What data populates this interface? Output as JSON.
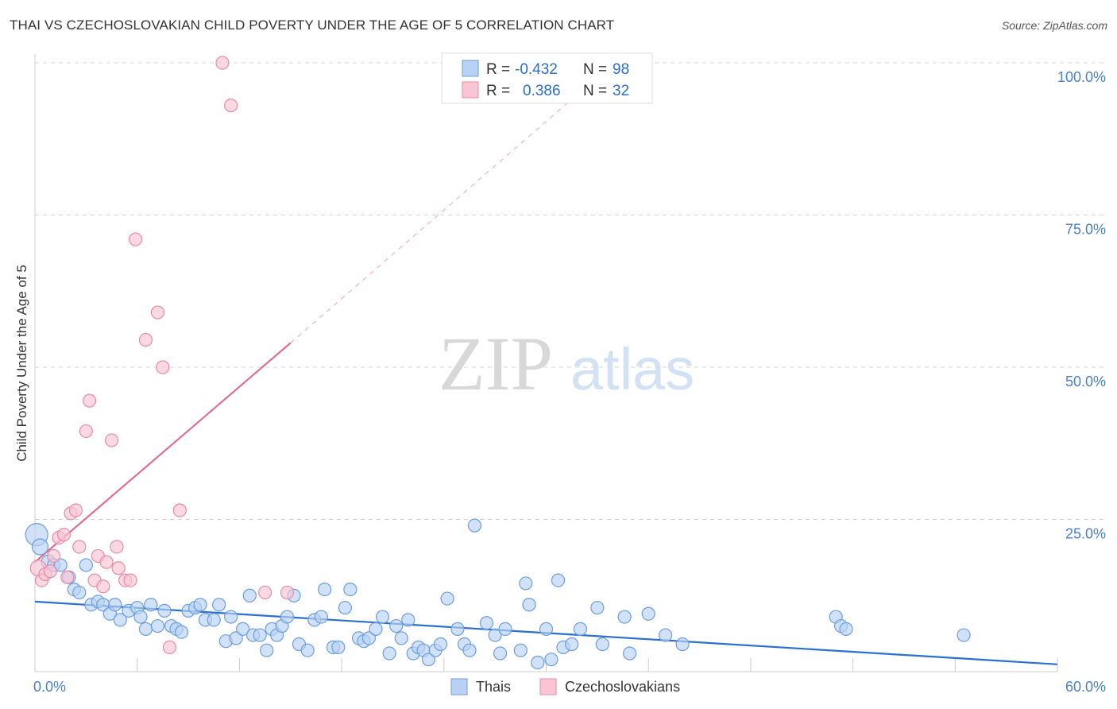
{
  "title": "THAI VS CZECHOSLOVAKIAN CHILD POVERTY UNDER THE AGE OF 5 CORRELATION CHART",
  "source": "Source: ZipAtlas.com",
  "colors": {
    "thai_fill": "#b8d2f4",
    "thai_stroke": "#6b9ee0",
    "thai_line": "#2a6fd1",
    "czech_fill": "#f8c5d4",
    "czech_stroke": "#ea8aa8",
    "czech_line": "#e06f96",
    "grid": "#d6d6d6",
    "axis_text": "#4a7fd0"
  },
  "chart_data": {
    "type": "scatter",
    "title": "THAI VS CZECHOSLOVAKIAN CHILD POVERTY UNDER THE AGE OF 5 CORRELATION CHART",
    "xlabel": "",
    "ylabel": "Child Poverty Under the Age of 5",
    "xlim": [
      0,
      60
    ],
    "ylim": [
      0,
      100
    ],
    "x_tick_labels": [
      "0.0%",
      "60.0%"
    ],
    "y_ticks": [
      25,
      50,
      75,
      100
    ],
    "y_tick_labels": [
      "25.0%",
      "50.0%",
      "75.0%",
      "100.0%"
    ],
    "legend": [
      {
        "name": "Thais",
        "r_label": "R = ",
        "r_value": "-0.432",
        "n_label": "N = ",
        "n_value": "98"
      },
      {
        "name": "Czechoslovakians",
        "r_label": "R = ",
        "r_value": "0.386",
        "n_label": "N = ",
        "n_value": "32"
      }
    ],
    "watermark": {
      "zip": "ZIP",
      "atlas": "atlas"
    },
    "series": [
      {
        "name": "Thais",
        "trend": {
          "x0": 0,
          "y0": 11.5,
          "x1": 60,
          "y1": 1.2
        },
        "points": [
          [
            0.1,
            22.5,
            14
          ],
          [
            0.3,
            20.5,
            10
          ],
          [
            0.8,
            18.0,
            9
          ],
          [
            1.1,
            17.5,
            8
          ],
          [
            1.5,
            17.5,
            8
          ],
          [
            2.0,
            15.5,
            8
          ],
          [
            2.3,
            13.5,
            8
          ],
          [
            2.6,
            13.0,
            8
          ],
          [
            3.0,
            17.5,
            8
          ],
          [
            3.3,
            11.0,
            8
          ],
          [
            3.7,
            11.5,
            8
          ],
          [
            4.0,
            11.0,
            8
          ],
          [
            4.4,
            9.5,
            8
          ],
          [
            4.7,
            11.0,
            8
          ],
          [
            5.0,
            8.5,
            8
          ],
          [
            5.5,
            10.0,
            8
          ],
          [
            6.0,
            10.5,
            8
          ],
          [
            6.2,
            9.0,
            8
          ],
          [
            6.5,
            7.0,
            8
          ],
          [
            6.8,
            11.0,
            8
          ],
          [
            7.2,
            7.5,
            8
          ],
          [
            7.6,
            10.0,
            8
          ],
          [
            8.0,
            7.5,
            8
          ],
          [
            8.3,
            7.0,
            8
          ],
          [
            8.6,
            6.5,
            8
          ],
          [
            9.0,
            10.0,
            8
          ],
          [
            9.4,
            10.5,
            8
          ],
          [
            9.7,
            11.0,
            8
          ],
          [
            10.0,
            8.5,
            8
          ],
          [
            10.5,
            8.5,
            8
          ],
          [
            10.8,
            11.0,
            8
          ],
          [
            11.2,
            5.0,
            8
          ],
          [
            11.5,
            9.0,
            8
          ],
          [
            11.8,
            5.5,
            8
          ],
          [
            12.2,
            7.0,
            8
          ],
          [
            12.6,
            12.5,
            8
          ],
          [
            12.8,
            6.0,
            8
          ],
          [
            13.2,
            6.0,
            8
          ],
          [
            13.6,
            3.5,
            8
          ],
          [
            13.9,
            7.0,
            8
          ],
          [
            14.2,
            6.0,
            8
          ],
          [
            14.5,
            7.5,
            8
          ],
          [
            14.8,
            9.0,
            8
          ],
          [
            15.2,
            12.5,
            8
          ],
          [
            15.5,
            4.5,
            8
          ],
          [
            16.0,
            3.5,
            8
          ],
          [
            16.4,
            8.5,
            8
          ],
          [
            16.8,
            9.0,
            8
          ],
          [
            17.0,
            13.5,
            8
          ],
          [
            17.5,
            4.0,
            8
          ],
          [
            17.8,
            4.0,
            8
          ],
          [
            18.2,
            10.5,
            8
          ],
          [
            18.5,
            13.5,
            8
          ],
          [
            19.0,
            5.5,
            8
          ],
          [
            19.3,
            5.0,
            8
          ],
          [
            19.6,
            5.5,
            8
          ],
          [
            20.0,
            7.0,
            8
          ],
          [
            20.4,
            9.0,
            8
          ],
          [
            20.8,
            3.0,
            8
          ],
          [
            21.2,
            7.5,
            8
          ],
          [
            21.5,
            5.5,
            8
          ],
          [
            21.9,
            8.5,
            8
          ],
          [
            22.2,
            3.0,
            8
          ],
          [
            22.5,
            4.0,
            8
          ],
          [
            22.8,
            3.5,
            8
          ],
          [
            23.1,
            2.0,
            8
          ],
          [
            23.5,
            3.5,
            8
          ],
          [
            23.8,
            4.5,
            8
          ],
          [
            24.2,
            12.0,
            8
          ],
          [
            24.8,
            7.0,
            8
          ],
          [
            25.2,
            4.5,
            8
          ],
          [
            25.5,
            3.5,
            8
          ],
          [
            25.8,
            24.0,
            8
          ],
          [
            26.5,
            8.0,
            8
          ],
          [
            27.0,
            6.0,
            8
          ],
          [
            27.3,
            3.0,
            8
          ],
          [
            27.6,
            7.0,
            8
          ],
          [
            28.5,
            3.5,
            8
          ],
          [
            28.8,
            14.5,
            8
          ],
          [
            29.0,
            11.0,
            8
          ],
          [
            29.5,
            1.5,
            8
          ],
          [
            30.0,
            7.0,
            8
          ],
          [
            30.3,
            2.0,
            8
          ],
          [
            30.7,
            15.0,
            8
          ],
          [
            31.0,
            4.0,
            8
          ],
          [
            31.5,
            4.5,
            8
          ],
          [
            32.0,
            7.0,
            8
          ],
          [
            33.0,
            10.5,
            8
          ],
          [
            33.3,
            4.5,
            8
          ],
          [
            34.6,
            9.0,
            8
          ],
          [
            34.9,
            3.0,
            8
          ],
          [
            36.0,
            9.5,
            8
          ],
          [
            37.0,
            6.0,
            8
          ],
          [
            38.0,
            4.5,
            8
          ],
          [
            47.0,
            9.0,
            8
          ],
          [
            47.3,
            7.5,
            8
          ],
          [
            47.6,
            7.0,
            8
          ],
          [
            54.5,
            6.0,
            8
          ]
        ]
      },
      {
        "name": "Czechoslovakians",
        "trend": {
          "x0": 0,
          "y0": 18.0,
          "x1": 15,
          "y1": 54.0
        },
        "trend_ext": {
          "x0": 15,
          "y0": 54.0,
          "x1": 31.5,
          "y1": 94.0
        },
        "points": [
          [
            0.2,
            17.0,
            10
          ],
          [
            0.4,
            15.0,
            8
          ],
          [
            0.6,
            16.0,
            8
          ],
          [
            0.9,
            16.5,
            8
          ],
          [
            1.1,
            19.0,
            8
          ],
          [
            1.4,
            22.0,
            8
          ],
          [
            1.7,
            22.5,
            8
          ],
          [
            1.9,
            15.5,
            8
          ],
          [
            2.1,
            26.0,
            8
          ],
          [
            2.4,
            26.5,
            8
          ],
          [
            2.6,
            20.5,
            8
          ],
          [
            3.0,
            39.5,
            8
          ],
          [
            3.2,
            44.5,
            8
          ],
          [
            3.5,
            15.0,
            8
          ],
          [
            3.7,
            19.0,
            8
          ],
          [
            4.0,
            14.0,
            8
          ],
          [
            4.2,
            18.0,
            8
          ],
          [
            4.5,
            38.0,
            8
          ],
          [
            4.8,
            20.5,
            8
          ],
          [
            4.9,
            17.0,
            8
          ],
          [
            5.3,
            15.0,
            8
          ],
          [
            5.6,
            15.0,
            8
          ],
          [
            5.9,
            71.0,
            8
          ],
          [
            6.5,
            54.5,
            8
          ],
          [
            7.2,
            59.0,
            8
          ],
          [
            7.5,
            50.0,
            8
          ],
          [
            7.9,
            4.0,
            8
          ],
          [
            8.5,
            26.5,
            8
          ],
          [
            11.0,
            100.0,
            8
          ],
          [
            11.5,
            93.0,
            8
          ],
          [
            13.5,
            13.0,
            8
          ],
          [
            14.8,
            13.0,
            8
          ]
        ]
      }
    ]
  }
}
